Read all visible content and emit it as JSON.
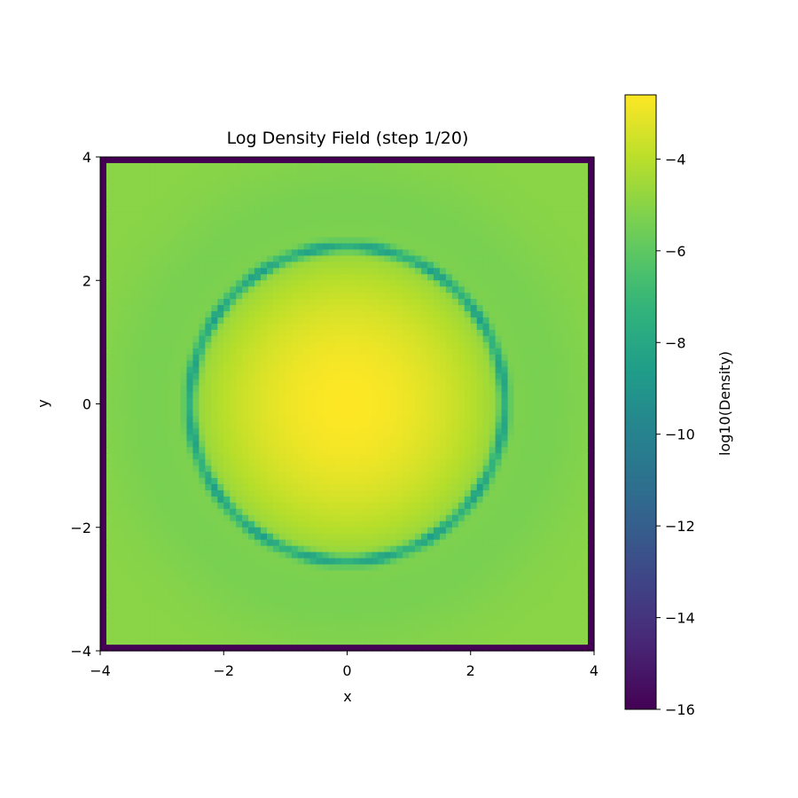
{
  "chart_data": {
    "type": "heatmap",
    "title": "Log Density Field (step 1/20)",
    "xlabel": "x",
    "ylabel": "y",
    "xlim": [
      -4,
      4
    ],
    "ylim": [
      -4,
      4
    ],
    "xticks": [
      -4,
      -2,
      0,
      2,
      4
    ],
    "yticks": [
      -4,
      -2,
      0,
      2,
      4
    ],
    "grid_cells": 80,
    "colorbar": {
      "label": "log10(Density)",
      "range": [
        -16,
        -2.6
      ],
      "ticks": [
        -4,
        -6,
        -8,
        -10,
        -12,
        -14,
        -16
      ],
      "colormap": "viridis"
    },
    "field": {
      "center_value": -2.6,
      "core_falloff_per_unit2": 0.36,
      "background_value": -5.0,
      "ring_radius": 2.55,
      "ring_width": 0.09,
      "ring_value": -8.0,
      "boundary_value": -16
    },
    "grid": false,
    "legend": "none"
  },
  "colors": {
    "viridis_stops": [
      "#440154",
      "#482878",
      "#3e4989",
      "#31688e",
      "#26828e",
      "#1f9e89",
      "#35b779",
      "#6ece58",
      "#b5de2b",
      "#fde725"
    ],
    "frame": "#000000",
    "background": "#ffffff"
  }
}
